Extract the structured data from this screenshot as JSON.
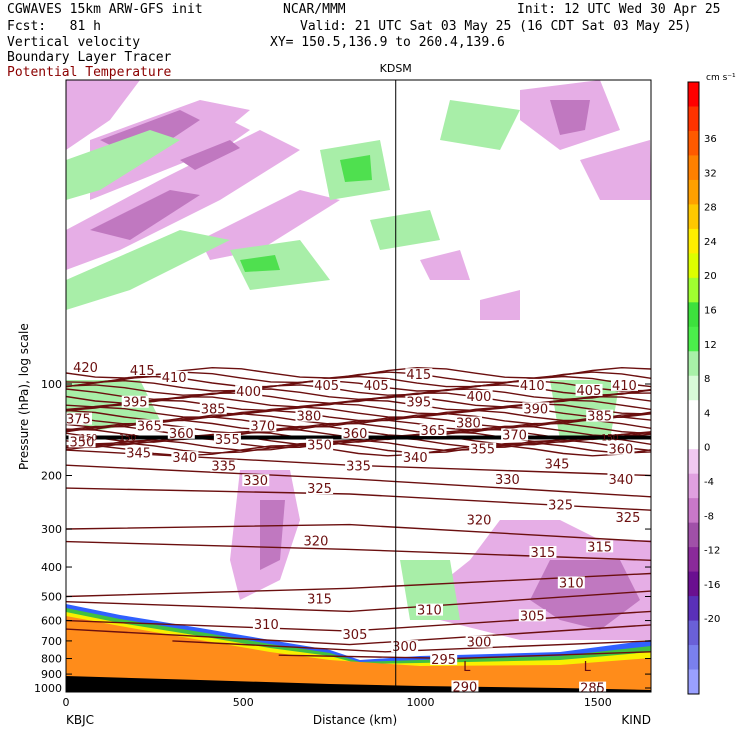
{
  "header": {
    "left1": "CGWAVES 15km ARW-GFS init",
    "left2": "Fcst:   81 h",
    "left3": "Vertical velocity",
    "left4": "Boundary Layer Tracer",
    "left5": "Potential Temperature",
    "center1": "NCAR/MMM",
    "right1": "Init: 12 UTC Wed 30 Apr 25",
    "right2": "Valid: 21 UTC Sat 03 May 25 (16 CDT Sat 03 May 25)",
    "right3": "XY= 150.5,136.9 to 260.4,139.6"
  },
  "chart_data": {
    "type": "heatmap",
    "title": "",
    "marker_label": "KDSM",
    "marker_x_km": 930,
    "xlabel": "Distance (km)",
    "ylabel": "Pressure (hPa), log scale",
    "xlim": [
      0,
      1650
    ],
    "x_ticks": [
      0,
      500,
      1000,
      1500
    ],
    "y_ticks": [
      100,
      200,
      300,
      400,
      500,
      600,
      700,
      800,
      900,
      1000
    ],
    "endpoints": {
      "left": "KBJC",
      "right": "KIND"
    },
    "colorbar": {
      "unit": "cm s⁻¹",
      "ticks": [
        36,
        32,
        28,
        24,
        20,
        16,
        12,
        8,
        4,
        0,
        -4,
        -8,
        -12,
        -16,
        -20
      ],
      "colors": [
        "#ff0000",
        "#ff3300",
        "#ff5a00",
        "#ff8000",
        "#ffa000",
        "#ffc800",
        "#ffee00",
        "#ddff00",
        "#a0ff30",
        "#3de13d",
        "#4bef4b",
        "#a8f0a8",
        "#d8fad8",
        "#ffffff",
        "#ffffff",
        "#f0c8f0",
        "#e0a0e0",
        "#c878c8",
        "#a050a8",
        "#8a2a9a",
        "#6a1090",
        "#5a30b8",
        "#6a60d8",
        "#7a80ee",
        "#9aa0ff"
      ]
    },
    "theta_labels": [
      {
        "v": "420",
        "x": 20,
        "p": 90
      },
      {
        "v": "415",
        "x": 180,
        "p": 92
      },
      {
        "v": "415",
        "x": 960,
        "p": 95
      },
      {
        "v": "410",
        "x": 270,
        "p": 97
      },
      {
        "v": "410",
        "x": 1280,
        "p": 103
      },
      {
        "v": "410",
        "x": 1540,
        "p": 103
      },
      {
        "v": "405",
        "x": 700,
        "p": 103
      },
      {
        "v": "405",
        "x": 840,
        "p": 103
      },
      {
        "v": "405",
        "x": 1440,
        "p": 107
      },
      {
        "v": "400",
        "x": 480,
        "p": 108
      },
      {
        "v": "400",
        "x": 1130,
        "p": 112
      },
      {
        "v": "395",
        "x": 160,
        "p": 117
      },
      {
        "v": "395",
        "x": 960,
        "p": 117
      },
      {
        "v": "390",
        "x": 1290,
        "p": 123
      },
      {
        "v": "385",
        "x": 380,
        "p": 123
      },
      {
        "v": "385",
        "x": 1470,
        "p": 130
      },
      {
        "v": "380",
        "x": 650,
        "p": 130
      },
      {
        "v": "380",
        "x": 1100,
        "p": 137
      },
      {
        "v": "375",
        "x": 0,
        "p": 133
      },
      {
        "v": "370",
        "x": 520,
        "p": 140
      },
      {
        "v": "370",
        "x": 1230,
        "p": 150
      },
      {
        "v": "365",
        "x": 200,
        "p": 140
      },
      {
        "v": "365",
        "x": 1000,
        "p": 145
      },
      {
        "v": "360",
        "x": 290,
        "p": 148
      },
      {
        "v": "360",
        "x": 780,
        "p": 148
      },
      {
        "v": "360",
        "x": 1530,
        "p": 167
      },
      {
        "v": "355",
        "x": 420,
        "p": 155
      },
      {
        "v": "355",
        "x": 1140,
        "p": 167
      },
      {
        "v": "350",
        "x": 10,
        "p": 158
      },
      {
        "v": "350",
        "x": 680,
        "p": 162
      },
      {
        "v": "345",
        "x": 170,
        "p": 172
      },
      {
        "v": "345",
        "x": 1350,
        "p": 187
      },
      {
        "v": "340",
        "x": 300,
        "p": 178
      },
      {
        "v": "340",
        "x": 950,
        "p": 178
      },
      {
        "v": "340",
        "x": 1530,
        "p": 210
      },
      {
        "v": "335",
        "x": 410,
        "p": 190
      },
      {
        "v": "335",
        "x": 790,
        "p": 190
      },
      {
        "v": "330",
        "x": 500,
        "p": 212
      },
      {
        "v": "330",
        "x": 1210,
        "p": 210
      },
      {
        "v": "325",
        "x": 680,
        "p": 225
      },
      {
        "v": "325",
        "x": 1360,
        "p": 255
      },
      {
        "v": "325",
        "x": 1550,
        "p": 280
      },
      {
        "v": "320",
        "x": 1130,
        "p": 285
      },
      {
        "v": "320",
        "x": 670,
        "p": 335
      },
      {
        "v": "315",
        "x": 1310,
        "p": 365
      },
      {
        "v": "315",
        "x": 1470,
        "p": 350
      },
      {
        "v": "315",
        "x": 680,
        "p": 520
      },
      {
        "v": "310",
        "x": 1390,
        "p": 460
      },
      {
        "v": "310",
        "x": 990,
        "p": 565
      },
      {
        "v": "310",
        "x": 530,
        "p": 630
      },
      {
        "v": "305",
        "x": 1280,
        "p": 590
      },
      {
        "v": "305",
        "x": 780,
        "p": 680
      },
      {
        "v": "300",
        "x": 920,
        "p": 745
      },
      {
        "v": "300",
        "x": 1130,
        "p": 720
      },
      {
        "v": "295",
        "x": 1030,
        "p": 820
      },
      {
        "v": "290",
        "x": 1090,
        "p": 1010
      },
      {
        "v": "285",
        "x": 1450,
        "p": 1020
      }
    ],
    "low_labels": [
      {
        "v": "L",
        "x": 1120,
        "p": 880
      },
      {
        "v": "L",
        "x": 1460,
        "p": 880
      }
    ],
    "small_labels": [
      {
        "v": "150",
        "x": 40,
        "p": 150
      },
      {
        "v": "150",
        "x": 150,
        "p": 150
      },
      {
        "v": "150",
        "x": 1510,
        "p": 150
      }
    ]
  }
}
